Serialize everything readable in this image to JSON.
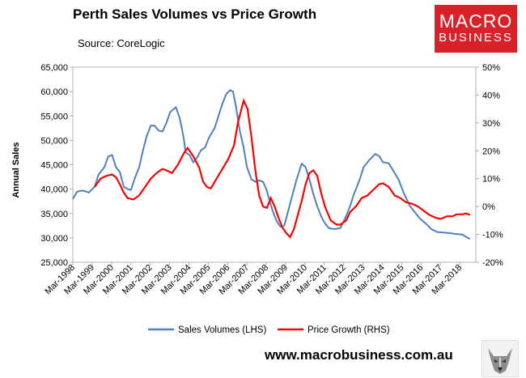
{
  "header": {
    "title": "Perth Sales Volumes vs Price Growth",
    "source": "Source: CoreLogic",
    "logo_line1": "MACRO",
    "logo_line2": "BUSINESS"
  },
  "footer": {
    "url": "www.macrobusiness.com.au"
  },
  "colors": {
    "sales": "#4f81bd",
    "price": "#ff0000",
    "axis": "#b0b0b0"
  },
  "chart_data": {
    "type": "line",
    "title": "Perth Sales Volumes vs Price Growth",
    "ylabel": "Annual Sales",
    "ylim": [
      25000,
      65000
    ],
    "y2lim": [
      -20,
      50
    ],
    "xlim": [
      1998.17,
      2019.0
    ],
    "x_tick_values": [
      1998.17,
      1999.17,
      2000.17,
      2001.17,
      2002.17,
      2003.17,
      2004.17,
      2005.17,
      2006.17,
      2007.17,
      2008.17,
      2009.17,
      2010.17,
      2011.17,
      2012.17,
      2013.17,
      2014.17,
      2015.17,
      2016.17,
      2017.17,
      2018.17
    ],
    "x_tick_labels": [
      "Mar-1998",
      "Mar-1999",
      "Mar-2000",
      "Mar-2001",
      "Mar-2002",
      "Mar-2003",
      "Mar-2004",
      "Mar-2005",
      "Mar-2006",
      "Mar-2007",
      "Mar-2008",
      "Mar-2009",
      "Mar-2010",
      "Mar-2011",
      "Mar-2012",
      "Mar-2013",
      "Mar-2014",
      "Mar-2015",
      "Mar-2016",
      "Mar-2017",
      "Mar-2018"
    ],
    "y_tick_values": [
      25000,
      30000,
      35000,
      40000,
      45000,
      50000,
      55000,
      60000,
      65000
    ],
    "y_tick_labels": [
      "25,000",
      "30,000",
      "35,000",
      "40,000",
      "45,000",
      "50,000",
      "55,000",
      "60,000",
      "65,000"
    ],
    "y2_tick_values": [
      -20,
      -10,
      0,
      10,
      20,
      30,
      40,
      50
    ],
    "y2_tick_labels": [
      "-20%",
      "-10%",
      "0%",
      "10%",
      "20%",
      "30%",
      "40%",
      "50%"
    ],
    "series": [
      {
        "name": "Sales Volumes (LHS)",
        "axis": "left",
        "points": [
          [
            1998.17,
            38000
          ],
          [
            1998.4,
            39500
          ],
          [
            1998.7,
            39700
          ],
          [
            1999.0,
            39300
          ],
          [
            1999.3,
            40500
          ],
          [
            1999.5,
            43000
          ],
          [
            1999.8,
            44500
          ],
          [
            2000.0,
            46700
          ],
          [
            2000.2,
            47000
          ],
          [
            2000.4,
            44500
          ],
          [
            2000.6,
            43500
          ],
          [
            2000.8,
            40500
          ],
          [
            2001.0,
            40000
          ],
          [
            2001.17,
            39800
          ],
          [
            2001.4,
            42500
          ],
          [
            2001.6,
            44500
          ],
          [
            2001.8,
            48000
          ],
          [
            2002.0,
            51000
          ],
          [
            2002.2,
            53000
          ],
          [
            2002.4,
            53000
          ],
          [
            2002.6,
            52000
          ],
          [
            2002.8,
            51800
          ],
          [
            2003.0,
            53500
          ],
          [
            2003.2,
            55800
          ],
          [
            2003.5,
            56800
          ],
          [
            2003.7,
            54500
          ],
          [
            2003.9,
            50500
          ],
          [
            2004.0,
            47500
          ],
          [
            2004.2,
            47000
          ],
          [
            2004.4,
            45500
          ],
          [
            2004.6,
            46500
          ],
          [
            2004.8,
            48000
          ],
          [
            2005.0,
            48500
          ],
          [
            2005.2,
            50500
          ],
          [
            2005.5,
            52500
          ],
          [
            2005.7,
            55000
          ],
          [
            2005.9,
            57500
          ],
          [
            2006.1,
            59500
          ],
          [
            2006.3,
            60300
          ],
          [
            2006.45,
            60000
          ],
          [
            2006.6,
            57000
          ],
          [
            2006.8,
            52000
          ],
          [
            2007.0,
            48500
          ],
          [
            2007.17,
            44500
          ],
          [
            2007.4,
            42000
          ],
          [
            2007.6,
            41500
          ],
          [
            2007.8,
            41800
          ],
          [
            2008.0,
            41500
          ],
          [
            2008.17,
            40000
          ],
          [
            2008.35,
            37500
          ],
          [
            2008.5,
            35500
          ],
          [
            2008.7,
            33500
          ],
          [
            2008.9,
            32300
          ],
          [
            2009.1,
            32500
          ],
          [
            2009.3,
            35500
          ],
          [
            2009.5,
            38500
          ],
          [
            2009.7,
            41500
          ],
          [
            2009.9,
            44000
          ],
          [
            2010.0,
            45200
          ],
          [
            2010.2,
            44500
          ],
          [
            2010.4,
            42000
          ],
          [
            2010.6,
            39000
          ],
          [
            2010.8,
            36500
          ],
          [
            2011.0,
            34500
          ],
          [
            2011.2,
            33000
          ],
          [
            2011.4,
            32000
          ],
          [
            2011.7,
            31800
          ],
          [
            2012.0,
            32000
          ],
          [
            2012.3,
            34500
          ],
          [
            2012.5,
            36500
          ],
          [
            2012.7,
            39000
          ],
          [
            2013.0,
            42000
          ],
          [
            2013.2,
            44500
          ],
          [
            2013.5,
            46000
          ],
          [
            2013.8,
            47200
          ],
          [
            2014.0,
            46800
          ],
          [
            2014.2,
            45500
          ],
          [
            2014.5,
            45300
          ],
          [
            2014.7,
            44000
          ],
          [
            2015.0,
            42000
          ],
          [
            2015.3,
            39000
          ],
          [
            2015.6,
            36500
          ],
          [
            2015.9,
            35000
          ],
          [
            2016.1,
            34000
          ],
          [
            2016.4,
            33000
          ],
          [
            2016.7,
            31800
          ],
          [
            2017.0,
            31200
          ],
          [
            2017.3,
            31100
          ],
          [
            2017.6,
            31000
          ],
          [
            2018.0,
            30800
          ],
          [
            2018.3,
            30700
          ],
          [
            2018.5,
            30200
          ],
          [
            2018.7,
            29800
          ]
        ]
      },
      {
        "name": "Price Growth (RHS)",
        "axis": "right",
        "points": [
          [
            1999.3,
            7
          ],
          [
            1999.6,
            10
          ],
          [
            1999.9,
            11
          ],
          [
            2000.2,
            11.5
          ],
          [
            2000.4,
            10.5
          ],
          [
            2000.6,
            8
          ],
          [
            2000.8,
            5
          ],
          [
            2001.0,
            3
          ],
          [
            2001.3,
            2.5
          ],
          [
            2001.6,
            4
          ],
          [
            2001.9,
            7
          ],
          [
            2002.2,
            10
          ],
          [
            2002.5,
            12
          ],
          [
            2002.8,
            13.5
          ],
          [
            2003.0,
            13
          ],
          [
            2003.3,
            12
          ],
          [
            2003.6,
            15
          ],
          [
            2003.9,
            19
          ],
          [
            2004.1,
            21
          ],
          [
            2004.4,
            18
          ],
          [
            2004.7,
            14
          ],
          [
            2004.9,
            9
          ],
          [
            2005.1,
            7
          ],
          [
            2005.3,
            6.5
          ],
          [
            2005.6,
            10
          ],
          [
            2005.9,
            13.5
          ],
          [
            2006.2,
            17
          ],
          [
            2006.5,
            22
          ],
          [
            2006.7,
            30
          ],
          [
            2007.0,
            38
          ],
          [
            2007.2,
            35
          ],
          [
            2007.4,
            25
          ],
          [
            2007.6,
            13
          ],
          [
            2007.8,
            4
          ],
          [
            2008.0,
            0
          ],
          [
            2008.2,
            -0.5
          ],
          [
            2008.4,
            3
          ],
          [
            2008.6,
            0
          ],
          [
            2008.8,
            -4
          ],
          [
            2009.0,
            -7.5
          ],
          [
            2009.2,
            -9.5
          ],
          [
            2009.4,
            -11
          ],
          [
            2009.6,
            -8
          ],
          [
            2009.8,
            -3
          ],
          [
            2010.0,
            2
          ],
          [
            2010.2,
            8
          ],
          [
            2010.4,
            12
          ],
          [
            2010.6,
            13
          ],
          [
            2010.8,
            11
          ],
          [
            2011.0,
            5
          ],
          [
            2011.2,
            0
          ],
          [
            2011.5,
            -5
          ],
          [
            2011.8,
            -6.5
          ],
          [
            2012.0,
            -6.5
          ],
          [
            2012.3,
            -5
          ],
          [
            2012.5,
            -2
          ],
          [
            2012.8,
            0
          ],
          [
            2013.1,
            3
          ],
          [
            2013.4,
            4
          ],
          [
            2013.7,
            6
          ],
          [
            2014.0,
            8
          ],
          [
            2014.2,
            8.3
          ],
          [
            2014.5,
            7
          ],
          [
            2014.8,
            4
          ],
          [
            2015.1,
            3
          ],
          [
            2015.4,
            1.5
          ],
          [
            2015.7,
            1
          ],
          [
            2016.0,
            0
          ],
          [
            2016.3,
            -1.5
          ],
          [
            2016.6,
            -3
          ],
          [
            2016.9,
            -4
          ],
          [
            2017.17,
            -4.5
          ],
          [
            2017.5,
            -3.5
          ],
          [
            2017.8,
            -3.5
          ],
          [
            2018.0,
            -2.8
          ],
          [
            2018.3,
            -2.8
          ],
          [
            2018.5,
            -2.5
          ],
          [
            2018.7,
            -3
          ]
        ]
      }
    ]
  }
}
